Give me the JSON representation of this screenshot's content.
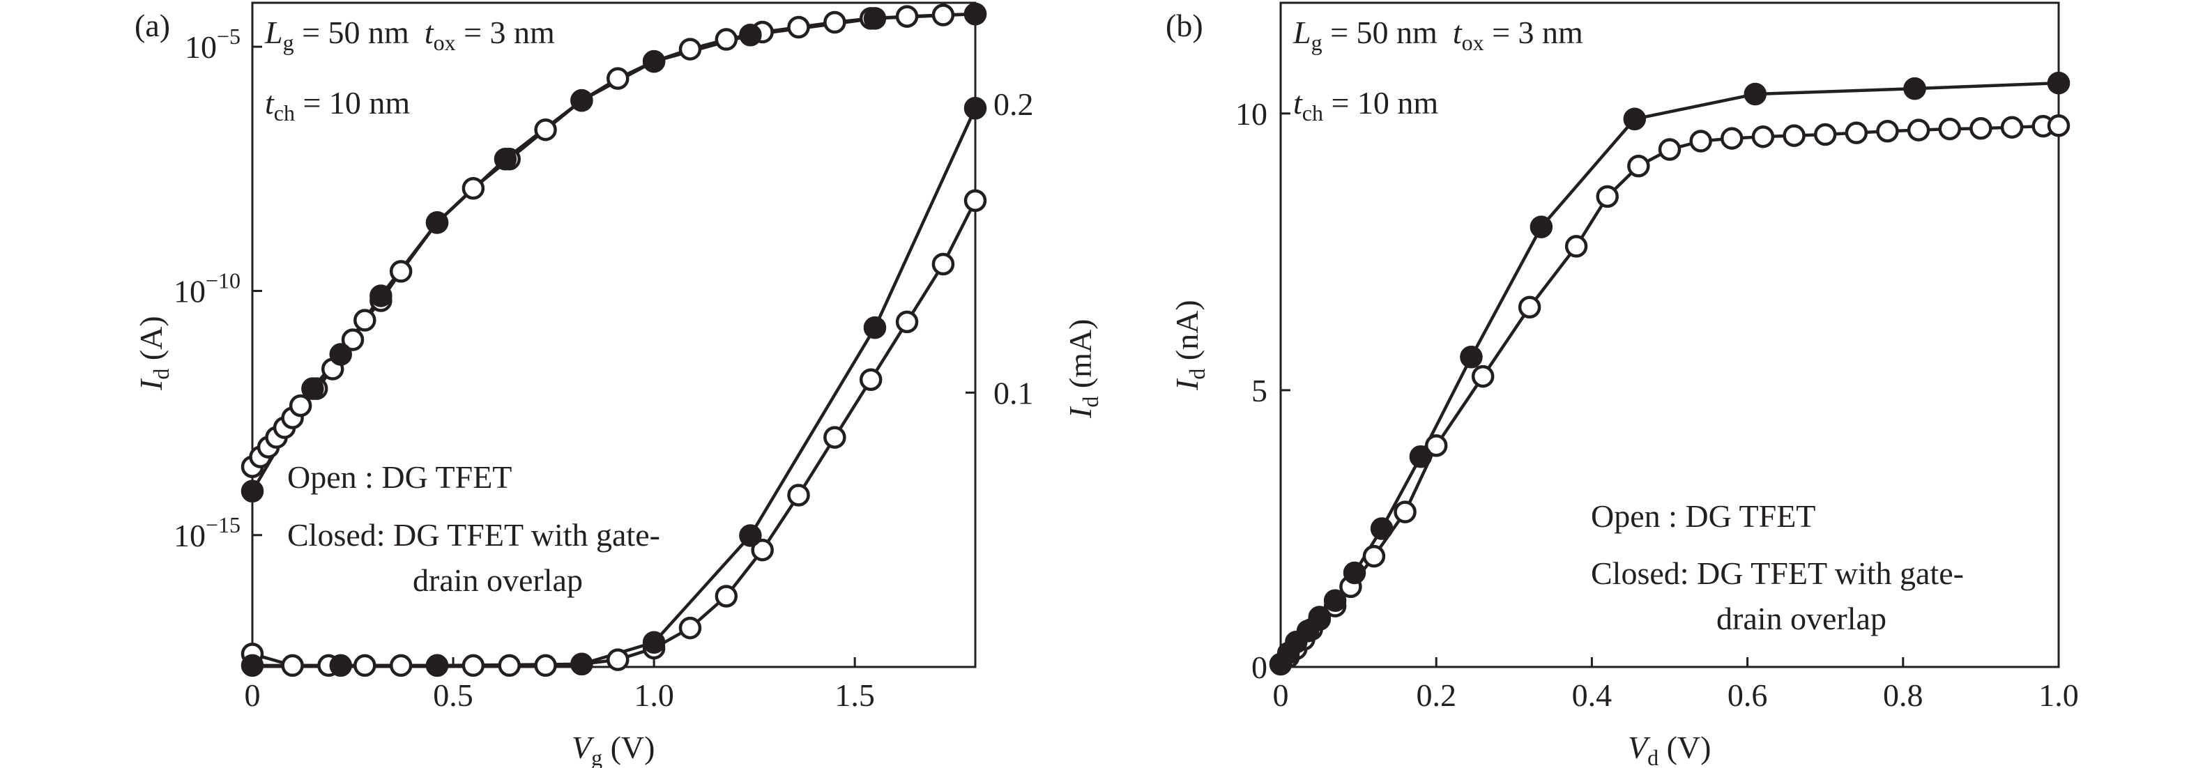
{
  "chart_data": [
    {
      "type": "line",
      "panel_label": "(a)",
      "annotations": {
        "line1": {
          "L": "L",
          "L_sub": "g",
          "L_val": " = 50 nm",
          "t": "t",
          "t_sub": "ox",
          "t_val": " = 3 nm"
        },
        "line2": {
          "t": "t",
          "t_sub": "ch",
          "t_val": " = 10 nm"
        }
      },
      "legend": {
        "open_key": "Open  ",
        "open_val": ": DG TFET",
        "closed_key": "Closed",
        "closed_val": ": DG TFET with gate-",
        "closed_val2": "drain overlap"
      },
      "xlabel": {
        "sym": "V",
        "sub": "g",
        "unit": " (V)"
      },
      "ylabel_left": {
        "sym": "I",
        "sub": "d",
        "unit": " (A)"
      },
      "ylabel_right": {
        "sym": "I",
        "sub": "d",
        "unit": " (mA)"
      },
      "x_ticks": [
        "0",
        "0.5",
        "1.0",
        "1.5"
      ],
      "x_tick_values": [
        0,
        0.5,
        1.0,
        1.5
      ],
      "xlim": [
        0,
        1.8
      ],
      "y_left_scale": "log",
      "y_left_ticks": [
        {
          "base": "10",
          "exp": "−5",
          "exp_value": -5
        },
        {
          "base": "10",
          "exp": "−10",
          "exp_value": -10
        },
        {
          "base": "10",
          "exp": "−15",
          "exp_value": -15
        }
      ],
      "y_left_lim_exp": [
        -17.7,
        -4.1
      ],
      "y_right_ticks": [
        "0.1",
        "0.2"
      ],
      "y_right_tick_values": [
        0.1,
        0.2
      ],
      "y_right_lim": [
        0.005,
        0.235
      ],
      "series": [
        {
          "axis": "left",
          "marker": "open",
          "x": [
            0,
            0.02,
            0.04,
            0.06,
            0.08,
            0.1,
            0.12,
            0.16,
            0.2,
            0.25,
            0.28,
            0.32,
            0.37,
            0.46,
            0.55,
            0.64,
            0.73,
            0.82,
            0.91,
            1.0,
            1.09,
            1.18,
            1.27,
            1.36,
            1.45,
            1.54,
            1.63,
            1.72,
            1.8
          ],
          "y_log10": [
            -13.6,
            -13.4,
            -13.2,
            -13.0,
            -12.8,
            -12.6,
            -12.35,
            -12.0,
            -11.6,
            -11.0,
            -10.6,
            -10.2,
            -9.6,
            -8.6,
            -7.9,
            -7.3,
            -6.7,
            -6.1,
            -5.65,
            -5.3,
            -5.05,
            -4.85,
            -4.7,
            -4.6,
            -4.5,
            -4.42,
            -4.38,
            -4.35,
            -4.33
          ]
        },
        {
          "axis": "left",
          "marker": "closed",
          "x": [
            0,
            0.15,
            0.22,
            0.32,
            0.46,
            0.63,
            0.82,
            1.0,
            1.24,
            1.55,
            1.8
          ],
          "y_log10": [
            -14.1,
            -12.0,
            -11.3,
            -10.1,
            -8.6,
            -7.3,
            -6.1,
            -5.3,
            -4.76,
            -4.42,
            -4.33
          ]
        },
        {
          "axis": "right",
          "marker": "open",
          "x": [
            0,
            0.1,
            0.19,
            0.28,
            0.37,
            0.46,
            0.55,
            0.64,
            0.73,
            0.82,
            0.91,
            1.0,
            1.09,
            1.18,
            1.27,
            1.36,
            1.45,
            1.54,
            1.63,
            1.72,
            1.8
          ],
          "y": [
            0.0095,
            0.0055,
            0.0055,
            0.0055,
            0.0055,
            0.0055,
            0.0055,
            0.0055,
            0.0055,
            0.006,
            0.0075,
            0.0115,
            0.0185,
            0.0295,
            0.0455,
            0.0645,
            0.0845,
            0.1045,
            0.1245,
            0.1445,
            0.1665
          ]
        },
        {
          "axis": "right",
          "marker": "closed",
          "x": [
            0,
            0.22,
            0.46,
            0.82,
            1.0,
            1.24,
            1.55,
            1.8
          ],
          "y": [
            0.0055,
            0.0055,
            0.0055,
            0.006,
            0.0135,
            0.0505,
            0.1225,
            0.1985
          ]
        }
      ]
    },
    {
      "type": "line",
      "panel_label": "(b)",
      "annotations": {
        "line1": {
          "L": "L",
          "L_sub": "g",
          "L_val": " = 50 nm",
          "t": "t",
          "t_sub": "ox",
          "t_val": " = 3 nm"
        },
        "line2": {
          "t": "t",
          "t_sub": "ch",
          "t_val": " = 10 nm"
        }
      },
      "legend": {
        "open_key": "Open  ",
        "open_val": ": DG TFET",
        "closed_key": "Closed",
        "closed_val": ": DG TFET with gate-",
        "closed_val2": "drain overlap"
      },
      "xlabel": {
        "sym": "V",
        "sub": "d",
        "unit": " (V)"
      },
      "ylabel": {
        "sym": "I",
        "sub": "d",
        "unit": " (nA)"
      },
      "x_ticks": [
        "0",
        "0.2",
        "0.4",
        "0.6",
        "0.8",
        "1.0"
      ],
      "x_tick_values": [
        0,
        0.2,
        0.4,
        0.6,
        0.8,
        1.0
      ],
      "xlim": [
        0,
        1.0
      ],
      "y_ticks": [
        "0",
        "5",
        "10"
      ],
      "y_tick_values": [
        0,
        5,
        10
      ],
      "ylim": [
        0,
        12
      ],
      "series": [
        {
          "marker": "open",
          "x": [
            0,
            0.01,
            0.02,
            0.03,
            0.04,
            0.05,
            0.07,
            0.09,
            0.12,
            0.16,
            0.2,
            0.26,
            0.32,
            0.38,
            0.42,
            0.46,
            0.5,
            0.54,
            0.58,
            0.62,
            0.66,
            0.7,
            0.74,
            0.78,
            0.82,
            0.86,
            0.9,
            0.94,
            0.98,
            1.0
          ],
          "y": [
            0.05,
            0.18,
            0.33,
            0.5,
            0.68,
            0.86,
            1.1,
            1.45,
            2.0,
            2.8,
            4.0,
            5.25,
            6.5,
            7.6,
            8.5,
            9.05,
            9.35,
            9.5,
            9.55,
            9.58,
            9.6,
            9.62,
            9.65,
            9.68,
            9.7,
            9.72,
            9.73,
            9.75,
            9.77,
            9.78
          ]
        },
        {
          "marker": "closed",
          "x": [
            0,
            0.01,
            0.02,
            0.035,
            0.05,
            0.07,
            0.095,
            0.13,
            0.18,
            0.245,
            0.335,
            0.455,
            0.61,
            0.815,
            1.0
          ],
          "y": [
            0.05,
            0.25,
            0.45,
            0.65,
            0.9,
            1.2,
            1.7,
            2.5,
            3.8,
            5.6,
            7.95,
            9.9,
            10.35,
            10.45,
            10.55
          ]
        }
      ]
    }
  ]
}
